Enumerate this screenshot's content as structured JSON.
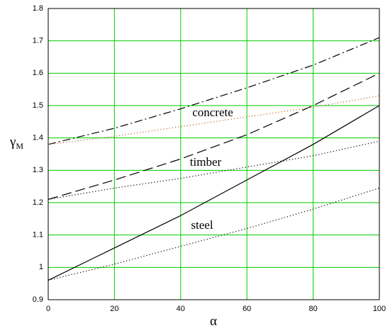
{
  "chart_data": {
    "type": "line",
    "xlabel": "α",
    "ylabel": "γ",
    "ylabel_subscript": "M",
    "x": [
      0,
      20,
      40,
      60,
      80,
      100
    ],
    "xlim": [
      0,
      100
    ],
    "ylim": [
      0.9,
      1.8
    ],
    "xticks": [
      0,
      20,
      40,
      60,
      80,
      100
    ],
    "yticks": [
      0.9,
      1,
      1.1,
      1.2,
      1.3,
      1.4,
      1.5,
      1.6,
      1.7,
      1.8
    ],
    "grid": true,
    "grid_color": "#00cc00",
    "series": [
      {
        "color": "#000000",
        "style": "solid",
        "values": [
          0.96,
          1.06,
          1.16,
          1.27,
          1.38,
          1.5
        ]
      },
      {
        "color": "#000000",
        "style": "dotted",
        "values": [
          0.96,
          1.01,
          1.065,
          1.12,
          1.18,
          1.245
        ]
      },
      {
        "color": "#000000",
        "style": "dashed",
        "values": [
          1.21,
          1.27,
          1.335,
          1.41,
          1.5,
          1.6
        ]
      },
      {
        "color": "#000000",
        "style": "dotted",
        "values": [
          1.21,
          1.245,
          1.275,
          1.31,
          1.345,
          1.39
        ]
      },
      {
        "color": "#000000",
        "style": "dashdot",
        "values": [
          1.38,
          1.43,
          1.49,
          1.555,
          1.625,
          1.71
        ]
      },
      {
        "color": "#c0602a",
        "style": "dotted",
        "values": [
          1.38,
          1.405,
          1.435,
          1.465,
          1.495,
          1.53
        ]
      }
    ],
    "annotations": [
      "concrete",
      "timber",
      "steel"
    ]
  }
}
